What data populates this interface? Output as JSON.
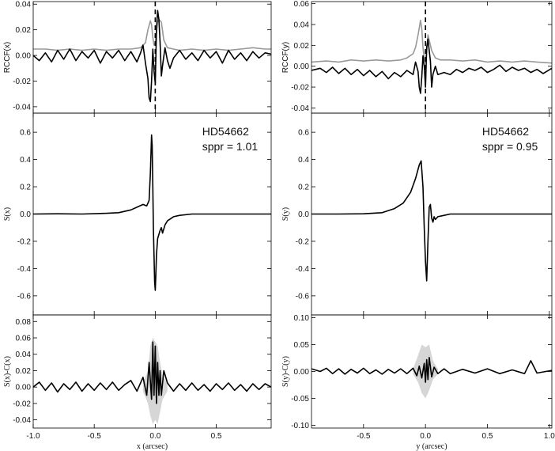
{
  "chart_data": [
    {
      "panel": "top-left",
      "type": "line",
      "ylabel": "RCCF(x)",
      "xlim": [
        -1.0,
        0.95
      ],
      "ylim": [
        -0.045,
        0.042
      ],
      "yticks": [
        -0.04,
        -0.02,
        0.0,
        0.02,
        0.04
      ],
      "yticklabels": [
        "-0.04",
        "-0.02",
        "0.00",
        "0.02",
        "0.04"
      ],
      "vline_x": 0.0,
      "series": [
        {
          "color": "#999999",
          "x": [
            -1.0,
            -0.9,
            -0.8,
            -0.7,
            -0.6,
            -0.5,
            -0.4,
            -0.3,
            -0.2,
            -0.12,
            -0.08,
            -0.06,
            -0.04,
            -0.03,
            -0.02,
            -0.01,
            0.0,
            0.01,
            0.02,
            0.03,
            0.05,
            0.07,
            0.1,
            0.15,
            0.2,
            0.3,
            0.4,
            0.5,
            0.6,
            0.7,
            0.8,
            0.9,
            0.95
          ],
          "y": [
            0.005,
            0.005,
            0.004,
            0.005,
            0.004,
            0.005,
            0.004,
            0.005,
            0.005,
            0.006,
            0.01,
            0.02,
            0.027,
            0.024,
            0.014,
            0.008,
            0.01,
            0.018,
            0.026,
            0.028,
            0.026,
            0.012,
            0.006,
            0.005,
            0.004,
            0.005,
            0.004,
            0.005,
            0.004,
            0.005,
            0.006,
            0.005,
            0.005
          ]
        },
        {
          "color": "#000000",
          "x": [
            -1.0,
            -0.95,
            -0.9,
            -0.85,
            -0.8,
            -0.75,
            -0.7,
            -0.65,
            -0.6,
            -0.55,
            -0.5,
            -0.45,
            -0.4,
            -0.35,
            -0.3,
            -0.25,
            -0.2,
            -0.15,
            -0.12,
            -0.1,
            -0.08,
            -0.06,
            -0.05,
            -0.04,
            -0.03,
            -0.02,
            -0.01,
            0.0,
            0.01,
            0.02,
            0.03,
            0.04,
            0.05,
            0.06,
            0.08,
            0.1,
            0.12,
            0.15,
            0.2,
            0.25,
            0.3,
            0.35,
            0.4,
            0.45,
            0.5,
            0.55,
            0.6,
            0.65,
            0.7,
            0.75,
            0.8,
            0.85,
            0.9,
            0.95
          ],
          "y": [
            0.0,
            -0.004,
            0.002,
            -0.005,
            0.004,
            -0.003,
            0.005,
            -0.004,
            0.003,
            -0.002,
            0.004,
            -0.006,
            0.003,
            -0.002,
            0.004,
            -0.004,
            0.003,
            -0.005,
            0.002,
            0.008,
            -0.006,
            -0.018,
            -0.033,
            -0.036,
            -0.02,
            0.005,
            -0.012,
            -0.022,
            0.02,
            0.035,
            0.028,
            0.01,
            -0.016,
            -0.008,
            0.006,
            -0.004,
            -0.01,
            -0.002,
            0.004,
            -0.003,
            0.002,
            -0.004,
            0.004,
            -0.002,
            0.003,
            -0.006,
            0.004,
            -0.003,
            0.002,
            -0.004,
            0.003,
            -0.002,
            0.002,
            0.001
          ]
        }
      ]
    },
    {
      "panel": "top-right",
      "type": "line",
      "ylabel": "RCCF(y)",
      "xlim": [
        -0.92,
        1.02
      ],
      "ylim": [
        -0.045,
        0.062
      ],
      "yticks": [
        -0.04,
        -0.02,
        0.0,
        0.02,
        0.04,
        0.06
      ],
      "yticklabels": [
        "-0.04",
        "-0.02",
        "0.00",
        "0.02",
        "0.04",
        "0.06"
      ],
      "vline_x": 0.0,
      "series": [
        {
          "color": "#999999",
          "x": [
            -0.92,
            -0.8,
            -0.7,
            -0.6,
            -0.5,
            -0.4,
            -0.3,
            -0.2,
            -0.15,
            -0.1,
            -0.08,
            -0.06,
            -0.04,
            -0.03,
            -0.02,
            -0.01,
            0.0,
            0.01,
            0.02,
            0.03,
            0.05,
            0.08,
            0.12,
            0.2,
            0.3,
            0.4,
            0.5,
            0.6,
            0.7,
            0.8,
            0.9,
            1.02
          ],
          "y": [
            0.004,
            0.005,
            0.004,
            0.006,
            0.005,
            0.006,
            0.005,
            0.006,
            0.008,
            0.012,
            0.018,
            0.03,
            0.044,
            0.036,
            0.018,
            0.008,
            0.004,
            0.014,
            0.03,
            0.025,
            0.015,
            0.008,
            0.006,
            0.006,
            0.005,
            0.006,
            0.004,
            0.005,
            0.004,
            0.005,
            0.004,
            0.003
          ]
        },
        {
          "color": "#000000",
          "x": [
            -0.92,
            -0.85,
            -0.8,
            -0.75,
            -0.7,
            -0.65,
            -0.6,
            -0.55,
            -0.5,
            -0.45,
            -0.4,
            -0.35,
            -0.3,
            -0.25,
            -0.2,
            -0.15,
            -0.1,
            -0.08,
            -0.06,
            -0.05,
            -0.04,
            -0.03,
            -0.02,
            -0.01,
            0.0,
            0.01,
            0.02,
            0.03,
            0.04,
            0.05,
            0.06,
            0.08,
            0.1,
            0.15,
            0.2,
            0.25,
            0.3,
            0.35,
            0.4,
            0.45,
            0.5,
            0.55,
            0.6,
            0.65,
            0.7,
            0.75,
            0.8,
            0.85,
            0.9,
            0.95,
            1.02
          ],
          "y": [
            -0.004,
            -0.002,
            -0.006,
            -0.001,
            -0.007,
            -0.002,
            -0.008,
            -0.003,
            -0.009,
            -0.004,
            -0.01,
            -0.005,
            -0.012,
            -0.006,
            -0.01,
            -0.004,
            -0.008,
            0.004,
            -0.005,
            -0.02,
            -0.026,
            -0.01,
            0.01,
            0.0,
            -0.02,
            0.018,
            0.026,
            0.015,
            0.005,
            -0.02,
            -0.008,
            0.0,
            -0.008,
            -0.006,
            -0.008,
            -0.003,
            -0.006,
            -0.002,
            -0.004,
            -0.001,
            -0.006,
            -0.003,
            0.001,
            -0.005,
            -0.001,
            -0.004,
            -0.002,
            -0.006,
            -0.003,
            -0.007,
            -0.002
          ]
        }
      ]
    },
    {
      "panel": "middle-left",
      "type": "line",
      "ylabel": "S(x)",
      "annotation_name": "HD54662",
      "annotation_sppr": "sppr = 1.01",
      "xlim": [
        -1.0,
        0.95
      ],
      "ylim": [
        -0.74,
        0.74
      ],
      "yticks": [
        -0.6,
        -0.4,
        -0.2,
        0.0,
        0.2,
        0.4,
        0.6
      ],
      "yticklabels": [
        "-0.6",
        "-0.4",
        "-0.2",
        "0.0",
        "0.2",
        "0.4",
        "0.6"
      ],
      "series": [
        {
          "color": "#000000",
          "x": [
            -1.0,
            -0.8,
            -0.6,
            -0.4,
            -0.3,
            -0.2,
            -0.15,
            -0.1,
            -0.07,
            -0.05,
            -0.04,
            -0.03,
            -0.025,
            -0.02,
            -0.015,
            -0.01,
            -0.005,
            0.0,
            0.005,
            0.01,
            0.02,
            0.04,
            0.05,
            0.06,
            0.08,
            0.1,
            0.15,
            0.2,
            0.3,
            0.5,
            0.7,
            0.95
          ],
          "y": [
            0.0,
            0.002,
            0.0,
            0.005,
            0.01,
            0.03,
            0.05,
            0.07,
            0.06,
            0.1,
            0.3,
            0.58,
            0.5,
            0.2,
            -0.1,
            -0.3,
            -0.5,
            -0.56,
            -0.45,
            -0.3,
            -0.18,
            -0.12,
            -0.1,
            -0.14,
            -0.08,
            -0.05,
            -0.02,
            -0.01,
            0.0,
            0.0,
            0.0,
            0.0
          ]
        }
      ]
    },
    {
      "panel": "middle-right",
      "type": "line",
      "ylabel": "S(y)",
      "annotation_name": "HD54662",
      "annotation_sppr": "sppr = 0.95",
      "xlim": [
        -0.92,
        1.02
      ],
      "ylim": [
        -0.74,
        0.74
      ],
      "yticks": [
        -0.6,
        -0.4,
        -0.2,
        0.0,
        0.2,
        0.4,
        0.6
      ],
      "yticklabels": [
        "-0.6",
        "-0.4",
        "-0.2",
        "0.0",
        "0.2",
        "0.4",
        "0.6"
      ],
      "series": [
        {
          "color": "#000000",
          "x": [
            -0.92,
            -0.7,
            -0.5,
            -0.35,
            -0.25,
            -0.18,
            -0.12,
            -0.08,
            -0.05,
            -0.035,
            -0.02,
            -0.01,
            0.0,
            0.01,
            0.02,
            0.03,
            0.04,
            0.05,
            0.06,
            0.07,
            0.08,
            0.1,
            0.15,
            0.2,
            0.3,
            0.5,
            0.7,
            1.02
          ],
          "y": [
            0.0,
            0.0,
            0.002,
            0.01,
            0.04,
            0.08,
            0.16,
            0.26,
            0.36,
            0.39,
            0.2,
            -0.1,
            -0.35,
            -0.49,
            -0.2,
            0.05,
            0.07,
            -0.03,
            -0.06,
            -0.02,
            -0.04,
            -0.02,
            -0.01,
            0.0,
            0.0,
            0.0,
            0.0,
            0.0
          ]
        }
      ]
    },
    {
      "panel": "bottom-left",
      "type": "line",
      "ylabel": "S(x)-C(x)",
      "xlabel": "x (arcsec)",
      "xlim": [
        -1.0,
        0.95
      ],
      "ylim": [
        -0.05,
        0.088
      ],
      "yticks": [
        -0.04,
        -0.02,
        0.0,
        0.02,
        0.04,
        0.06,
        0.08
      ],
      "yticklabels": [
        "-0.04",
        "-0.02",
        "0.00",
        "0.02",
        "0.04",
        "0.06",
        "0.08"
      ],
      "xticks": [
        -1.0,
        -0.5,
        0.0,
        0.5
      ],
      "xticklabels": [
        "-1.0",
        "-0.5",
        "0.0",
        "0.5"
      ],
      "band_color": "#d6d6d6",
      "band": {
        "x": [
          -0.1,
          -0.06,
          -0.04,
          -0.02,
          0.0,
          0.02,
          0.04,
          0.06,
          0.1
        ],
        "upper": [
          0.005,
          0.02,
          0.05,
          0.06,
          0.055,
          0.05,
          0.03,
          0.015,
          0.005
        ],
        "lower": [
          -0.005,
          -0.02,
          -0.035,
          -0.045,
          -0.04,
          -0.045,
          -0.03,
          -0.015,
          -0.005
        ]
      },
      "series": [
        {
          "color": "#000000",
          "x": [
            -1.0,
            -0.95,
            -0.9,
            -0.85,
            -0.8,
            -0.75,
            -0.7,
            -0.65,
            -0.6,
            -0.55,
            -0.5,
            -0.45,
            -0.4,
            -0.35,
            -0.3,
            -0.25,
            -0.2,
            -0.15,
            -0.1,
            -0.07,
            -0.05,
            -0.03,
            -0.02,
            -0.01,
            0.0,
            0.01,
            0.02,
            0.03,
            0.04,
            0.05,
            0.07,
            0.1,
            0.15,
            0.2,
            0.25,
            0.3,
            0.35,
            0.4,
            0.45,
            0.5,
            0.55,
            0.6,
            0.65,
            0.7,
            0.75,
            0.8,
            0.85,
            0.9,
            0.95
          ],
          "y": [
            0.0,
            0.006,
            -0.004,
            0.005,
            -0.006,
            0.004,
            -0.003,
            0.006,
            -0.005,
            0.004,
            -0.004,
            0.005,
            -0.003,
            0.006,
            -0.004,
            0.003,
            0.008,
            -0.005,
            0.012,
            -0.01,
            0.03,
            -0.015,
            0.055,
            -0.01,
            0.05,
            -0.02,
            0.03,
            -0.01,
            0.02,
            -0.01,
            0.02,
            0.005,
            -0.005,
            0.004,
            -0.004,
            0.005,
            -0.004,
            0.003,
            -0.005,
            0.004,
            -0.003,
            0.005,
            -0.004,
            0.003,
            -0.005,
            0.004,
            -0.003,
            0.004,
            0.0
          ]
        }
      ]
    },
    {
      "panel": "bottom-right",
      "type": "line",
      "ylabel": "S(y)-C(y)",
      "xlabel": "y (arcsec)",
      "xlim": [
        -0.92,
        1.02
      ],
      "ylim": [
        -0.105,
        0.105
      ],
      "yticks": [
        -0.1,
        -0.05,
        0.0,
        0.05,
        0.1
      ],
      "yticklabels": [
        "-0.10",
        "-0.05",
        "0.00",
        "0.05",
        "0.10"
      ],
      "xticks": [
        -0.5,
        0.0,
        0.5,
        1.0
      ],
      "xticklabels": [
        "-0.5",
        "0.0",
        "0.5",
        "1.0"
      ],
      "band_color": "#d6d6d6",
      "band": {
        "x": [
          -0.1,
          -0.06,
          -0.03,
          0.0,
          0.03,
          0.06,
          0.1
        ],
        "upper": [
          0.005,
          0.03,
          0.05,
          0.045,
          0.05,
          0.02,
          0.005
        ],
        "lower": [
          -0.005,
          -0.02,
          -0.04,
          -0.05,
          -0.035,
          -0.015,
          -0.005
        ]
      },
      "series": [
        {
          "color": "#000000",
          "x": [
            -0.92,
            -0.85,
            -0.8,
            -0.75,
            -0.7,
            -0.65,
            -0.6,
            -0.55,
            -0.5,
            -0.45,
            -0.4,
            -0.35,
            -0.3,
            -0.25,
            -0.2,
            -0.15,
            -0.1,
            -0.07,
            -0.05,
            -0.03,
            -0.01,
            0.0,
            0.01,
            0.02,
            0.03,
            0.05,
            0.07,
            0.1,
            0.15,
            0.2,
            0.3,
            0.4,
            0.5,
            0.6,
            0.7,
            0.8,
            0.85,
            0.9,
            1.02
          ],
          "y": [
            0.005,
            0.0,
            0.006,
            -0.004,
            0.005,
            -0.005,
            0.004,
            -0.003,
            0.006,
            -0.004,
            0.003,
            -0.005,
            0.004,
            -0.003,
            0.005,
            -0.004,
            0.006,
            -0.008,
            0.01,
            -0.012,
            0.015,
            -0.02,
            0.022,
            -0.015,
            0.026,
            -0.01,
            0.008,
            -0.004,
            0.005,
            -0.004,
            0.004,
            -0.003,
            0.005,
            -0.004,
            0.003,
            -0.004,
            0.02,
            -0.003,
            0.002
          ]
        }
      ]
    }
  ]
}
